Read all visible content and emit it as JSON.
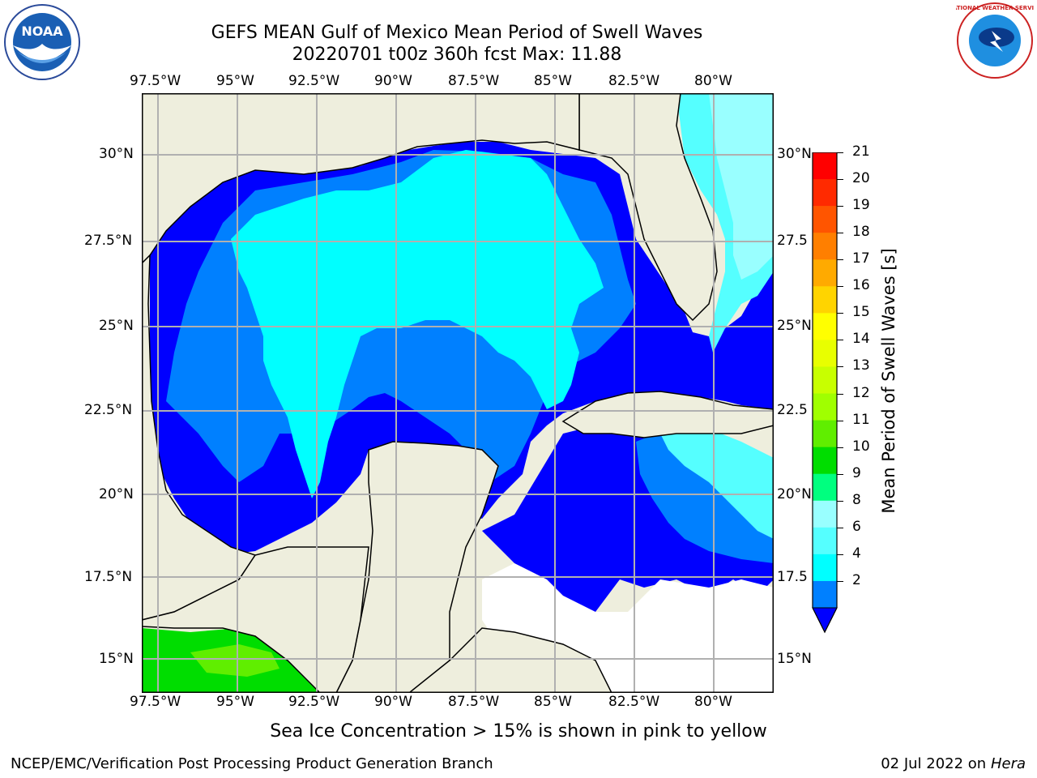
{
  "title_line1": "GEFS MEAN Gulf of Mexico Mean Period of Swell Waves",
  "title_line2": "20220701 t00z 360h fcst   Max: 11.88",
  "lon_ticks": [
    "97.5°W",
    "95°W",
    "92.5°W",
    "90°W",
    "87.5°W",
    "85°W",
    "82.5°W",
    "80°W"
  ],
  "lat_ticks_left": [
    "30°N",
    "27.5°N",
    "25°N",
    "22.5°N",
    "20°N",
    "17.5°N",
    "15°N"
  ],
  "lat_ticks_right": [
    "30°N",
    "27.5",
    "25°N",
    "22.5",
    "20°N",
    "17.5",
    "15°N"
  ],
  "colorbar": {
    "label": "Mean Period of Swell Waves [s]",
    "ticks": [
      "21",
      "20",
      "19",
      "18",
      "17",
      "16",
      "15",
      "14",
      "13",
      "12",
      "11",
      "10",
      "9",
      "8",
      "6",
      "4",
      "2"
    ],
    "colors": [
      "#ff0000",
      "#ff2a00",
      "#ff5500",
      "#ff7f00",
      "#ffaa00",
      "#ffd400",
      "#ffff00",
      "#e8ff00",
      "#c8ff00",
      "#a0ff00",
      "#60ee00",
      "#00dd00",
      "#00ff7f",
      "#99ffff",
      "#55ffff",
      "#00ffff",
      "#0080ff"
    ],
    "extend_color": "#0000ff"
  },
  "map_colors": {
    "land": "#eeeedd",
    "deep": "#0000ff",
    "mid": "#0080ff",
    "light": "#00ffff",
    "pale": "#55ffff",
    "paler": "#99ffff",
    "green": "#00dd00",
    "green2": "#60ee00",
    "grid": "#b0b0b0"
  },
  "logos": {
    "left": "NOAA",
    "right": "NATIONAL WEATHER SERVICE"
  },
  "note": "Sea Ice Concentration > 15% is shown in pink to yellow",
  "footer_left": "NCEP/EMC/Verification Post Processing Product Generation Branch",
  "footer_right_date": "02 Jul 2022 on ",
  "footer_right_host": "Hera"
}
